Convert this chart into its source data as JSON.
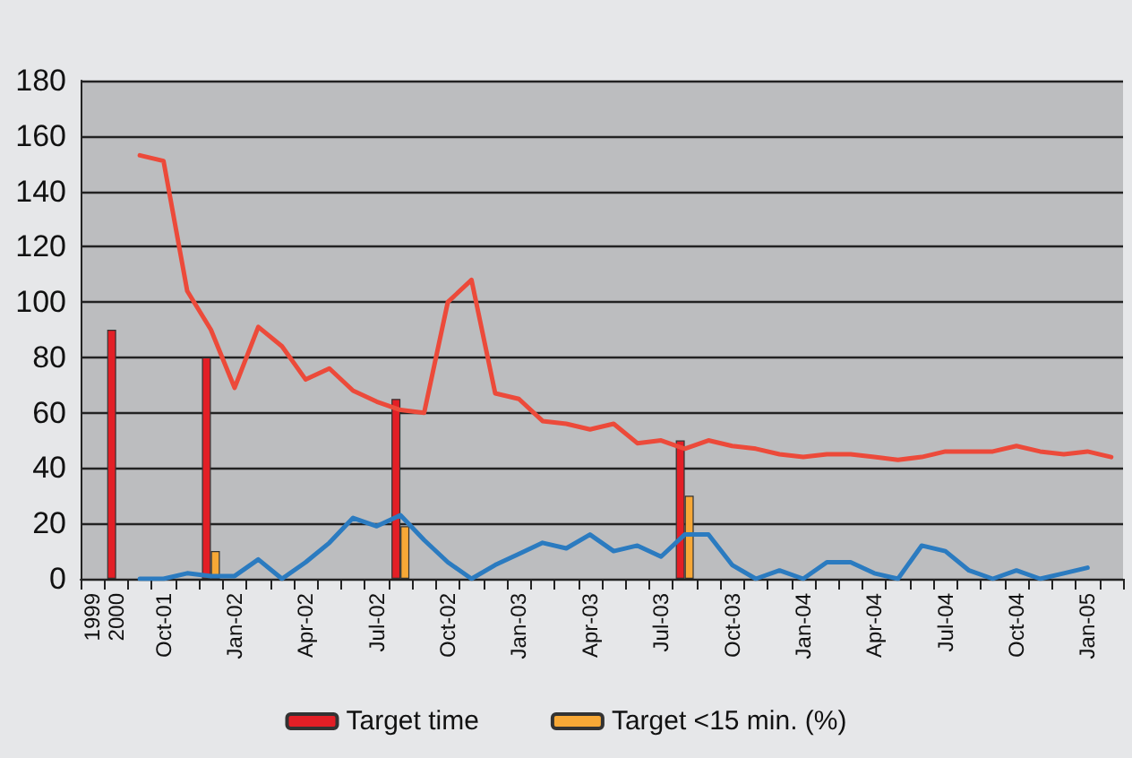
{
  "chart_data": {
    "type": "bar",
    "categories": [
      "1999",
      "2000",
      null,
      "Oct-01",
      null,
      null,
      "Jan-02",
      null,
      null,
      "Apr-02",
      null,
      null,
      "Jul-02",
      null,
      null,
      "Oct-02",
      null,
      null,
      "Jan-03",
      null,
      null,
      "Apr-03",
      null,
      null,
      "Jul-03",
      null,
      null,
      "Oct-03",
      null,
      null,
      "Jan-04",
      null,
      null,
      "Apr-04",
      null,
      null,
      "Jul-04",
      null,
      null,
      "Oct-04",
      null,
      null,
      "Jan-05",
      null
    ],
    "series": [
      {
        "name": "Target time",
        "color": "#e31f26",
        "values": [
          null,
          90,
          null,
          null,
          null,
          80,
          null,
          null,
          null,
          null,
          null,
          null,
          null,
          65,
          null,
          null,
          null,
          null,
          null,
          null,
          null,
          null,
          null,
          null,
          null,
          50,
          null,
          null,
          null,
          null,
          null,
          null,
          null,
          null,
          null,
          null,
          null,
          null,
          null,
          null,
          null,
          null,
          null,
          null
        ]
      },
      {
        "name": "Target <15 min. (%)",
        "color": "#f7a836",
        "values": [
          null,
          null,
          null,
          null,
          null,
          10,
          null,
          null,
          null,
          null,
          null,
          null,
          null,
          19,
          null,
          null,
          null,
          null,
          null,
          null,
          null,
          null,
          null,
          null,
          null,
          30,
          null,
          null,
          null,
          null,
          null,
          null,
          null,
          null,
          null,
          null,
          null,
          null,
          null,
          null,
          null,
          null,
          null,
          null
        ]
      },
      {
        "type": "line",
        "color": "#ec4a3a",
        "values": [
          null,
          null,
          153,
          151,
          104,
          90,
          69,
          91,
          84,
          72,
          76,
          68,
          64,
          61,
          60,
          100,
          108,
          67,
          65,
          57,
          56,
          54,
          56,
          49,
          50,
          47,
          50,
          48,
          47,
          45,
          44,
          45,
          45,
          44,
          43,
          44,
          46,
          46,
          46,
          48,
          46,
          45,
          46,
          44
        ]
      },
      {
        "type": "line",
        "color": "#2b7bc0",
        "values": [
          null,
          null,
          0,
          0,
          2,
          1,
          1,
          7,
          0,
          6,
          13,
          22,
          19,
          23,
          14,
          6,
          0,
          5,
          9,
          13,
          11,
          16,
          10,
          12,
          8,
          16,
          16,
          5,
          0,
          3,
          0,
          6,
          6,
          2,
          0,
          12,
          10,
          3,
          0,
          3,
          0,
          2,
          4,
          null
        ]
      }
    ],
    "ylim": [
      0,
      180
    ],
    "yticks": [
      0,
      20,
      40,
      60,
      80,
      100,
      120,
      140,
      160,
      180
    ],
    "grid": "y",
    "legend": "bottom"
  }
}
